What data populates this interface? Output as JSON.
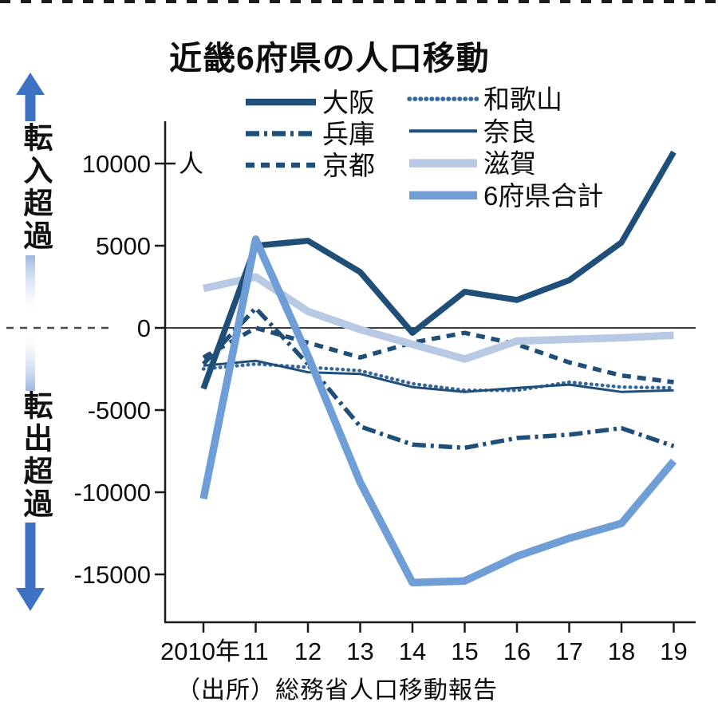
{
  "title": "近畿6府県の人口移動",
  "source": "（出所）総務省人口移動報告",
  "annotations": {
    "top_arrow_label": "転入超過",
    "bottom_arrow_label": "転出超過",
    "unit": "人",
    "arrow_color": "#3c71c3",
    "shaft_pale_color": "#9db7de"
  },
  "chart_data": {
    "type": "line",
    "categories": [
      2010,
      2011,
      2012,
      2013,
      2014,
      2015,
      2016,
      2017,
      2018,
      2019
    ],
    "x_tick_labels": [
      "2010年",
      "11",
      "12",
      "13",
      "14",
      "15",
      "16",
      "17",
      "18",
      "19"
    ],
    "y_ticks": [
      10000,
      5000,
      0,
      -5000,
      -10000,
      -15000
    ],
    "ylim": [
      -17800,
      12600
    ],
    "grid": "zero-line-only",
    "legend_position": "top",
    "series": [
      {
        "key": "osaka",
        "name": "大阪",
        "color": "#1f4e79",
        "dash": "solid",
        "width": 7.5,
        "z": 6,
        "legend": {
          "col": 1,
          "row": 0
        },
        "values": [
          -3700,
          5000,
          5300,
          3400,
          -300,
          2200,
          1700,
          2900,
          5200,
          10700
        ]
      },
      {
        "key": "hyogo",
        "name": "兵庫",
        "color": "#1f4e79",
        "dash": "dash-dot",
        "width": 5.5,
        "z": 2,
        "legend": {
          "col": 1,
          "row": 1
        },
        "values": [
          -2200,
          1200,
          -2200,
          -6000,
          -7100,
          -7300,
          -6700,
          -6500,
          -6100,
          -7200
        ]
      },
      {
        "key": "kyoto",
        "name": "京都",
        "color": "#1f4e79",
        "dash": "dashed",
        "width": 5.5,
        "z": 1,
        "legend": {
          "col": 1,
          "row": 2
        },
        "values": [
          -1800,
          0,
          -900,
          -1800,
          -900,
          -300,
          -1000,
          -2100,
          -2900,
          -3300
        ]
      },
      {
        "key": "wakayama",
        "name": "和歌山",
        "color": "#35679e",
        "dash": "dotted",
        "width": 4.5,
        "z": 3,
        "legend": {
          "col": 2,
          "row": 0
        },
        "values": [
          -2500,
          -2200,
          -2400,
          -2600,
          -3400,
          -3800,
          -3800,
          -3300,
          -3600,
          -3650
        ]
      },
      {
        "key": "nara",
        "name": "奈良",
        "color": "#1f4e79",
        "dash": "solid",
        "width": 3,
        "z": 4,
        "legend": {
          "col": 2,
          "row": 1
        },
        "values": [
          -2300,
          -2000,
          -2700,
          -2800,
          -3600,
          -3900,
          -3650,
          -3450,
          -3900,
          -3800
        ]
      },
      {
        "key": "shiga",
        "name": "滋賀",
        "color": "#b8c9e4",
        "dash": "solid",
        "width": 9.5,
        "z": 5,
        "legend": {
          "col": 2,
          "row": 2
        },
        "values": [
          2400,
          3100,
          1000,
          -100,
          -1000,
          -1900,
          -800,
          -700,
          -600,
          -450
        ]
      },
      {
        "key": "total",
        "name": "6府県合計",
        "color": "#6f9ed7",
        "dash": "solid",
        "width": 9.5,
        "z": 7,
        "legend": {
          "col": 2,
          "row": 3
        },
        "values": [
          -10400,
          5400,
          -1700,
          -9400,
          -15500,
          -15400,
          -13900,
          -12800,
          -11900,
          -8100
        ]
      }
    ]
  },
  "colors": {
    "axis": "#1a1a1a",
    "zero_line": "#222222",
    "left_dashed_zero": "#4a4a4a",
    "tick_label": "#0d0d0d",
    "background": "#ffffff"
  }
}
